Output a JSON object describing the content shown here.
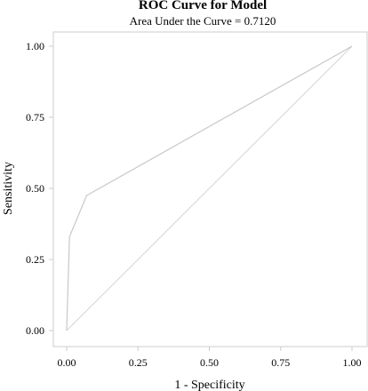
{
  "chart_data": {
    "type": "line",
    "title": "ROC Curve for Model",
    "subtitle": "Area Under the Curve = 0.7120",
    "xlabel": "1 - Specificity",
    "ylabel": "Sensitivity",
    "xlim": [
      0,
      1
    ],
    "ylim": [
      0,
      1
    ],
    "xticks": [
      "0.00",
      "0.25",
      "0.50",
      "0.75",
      "1.00"
    ],
    "yticks": [
      "0.00",
      "0.25",
      "0.50",
      "0.75",
      "1.00"
    ],
    "grid": false,
    "series": [
      {
        "x": [
          0.0,
          0.0,
          0.01,
          0.07,
          1.0
        ],
        "y": [
          0.0,
          0.0,
          0.33,
          0.475,
          1.0
        ]
      },
      {
        "x": [
          0.0,
          1.0
        ],
        "y": [
          0.0,
          1.0
        ]
      }
    ],
    "colors": {
      "axis": "#cccccc",
      "curve": "#c8c8c8",
      "reference": "#d4d4d4",
      "text": "#000000"
    }
  }
}
